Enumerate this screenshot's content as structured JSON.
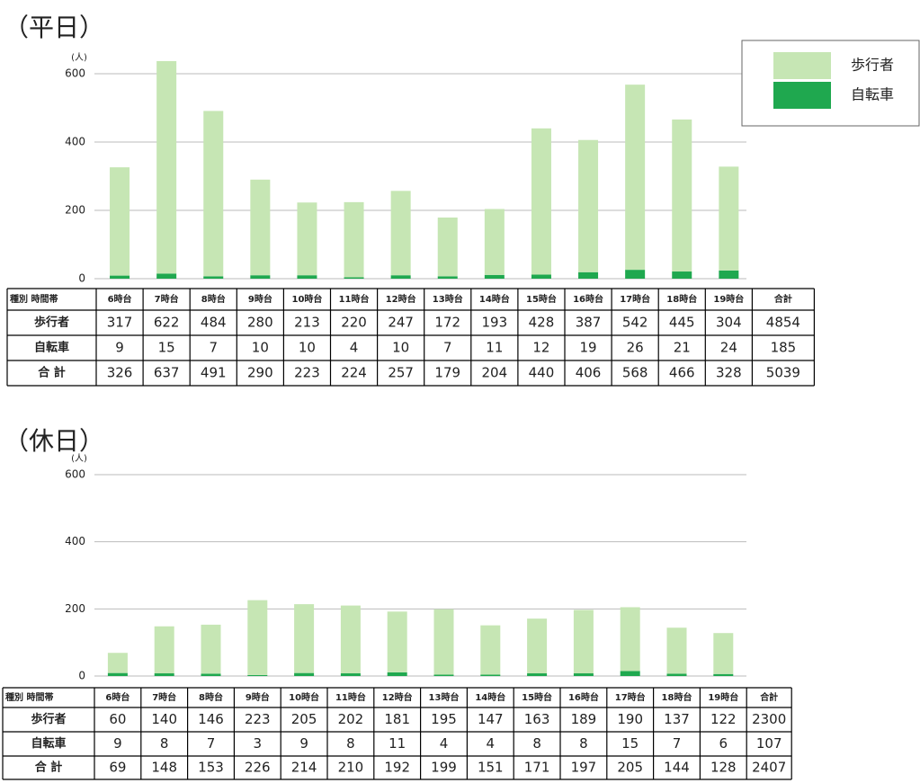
{
  "chart_data": [
    {
      "type": "bar",
      "title": "（平日）",
      "y_unit": "(人)",
      "categories": [
        "6時台",
        "7時台",
        "8時台",
        "9時台",
        "10時台",
        "11時台",
        "12時台",
        "13時台",
        "14時台",
        "15時台",
        "16時台",
        "17時台",
        "18時台",
        "19時台"
      ],
      "series": [
        {
          "name": "歩行者",
          "color": "#c6e6b4",
          "values": [
            317,
            622,
            484,
            280,
            213,
            220,
            247,
            172,
            193,
            428,
            387,
            542,
            445,
            304
          ]
        },
        {
          "name": "自転車",
          "color": "#1fa84f",
          "values": [
            9,
            15,
            7,
            10,
            10,
            4,
            10,
            7,
            11,
            12,
            19,
            26,
            21,
            24
          ]
        }
      ],
      "ylim": [
        0,
        650
      ],
      "yticks": [
        0,
        200,
        400,
        600
      ],
      "grid": true,
      "legend": "upper right",
      "table": {
        "corner": "種別 時間帯",
        "total_header": "合計",
        "total_row_label": "合 計",
        "hour_totals": [
          326,
          637,
          491,
          290,
          223,
          224,
          257,
          179,
          204,
          440,
          406,
          568,
          466,
          328
        ],
        "series_totals": [
          4854,
          185
        ],
        "grand_total": 5039
      }
    },
    {
      "type": "bar",
      "title": "（休日）",
      "y_unit": "(人)",
      "categories": [
        "6時台",
        "7時台",
        "8時台",
        "9時台",
        "10時台",
        "11時台",
        "12時台",
        "13時台",
        "14時台",
        "15時台",
        "16時台",
        "17時台",
        "18時台",
        "19時台"
      ],
      "series": [
        {
          "name": "歩行者",
          "color": "#c6e6b4",
          "values": [
            60,
            140,
            146,
            223,
            205,
            202,
            181,
            195,
            147,
            163,
            189,
            190,
            137,
            122
          ]
        },
        {
          "name": "自転車",
          "color": "#1fa84f",
          "values": [
            9,
            8,
            7,
            3,
            9,
            8,
            11,
            4,
            4,
            8,
            8,
            15,
            7,
            6
          ]
        }
      ],
      "ylim": [
        0,
        650
      ],
      "yticks": [
        0,
        200,
        400,
        600
      ],
      "grid": true,
      "table": {
        "corner": "種別 時間帯",
        "total_header": "合計",
        "total_row_label": "合 計",
        "hour_totals": [
          69,
          148,
          153,
          226,
          214,
          210,
          192,
          199,
          151,
          171,
          197,
          205,
          144,
          128
        ],
        "series_totals": [
          2300,
          107
        ],
        "grand_total": 2407
      }
    }
  ]
}
